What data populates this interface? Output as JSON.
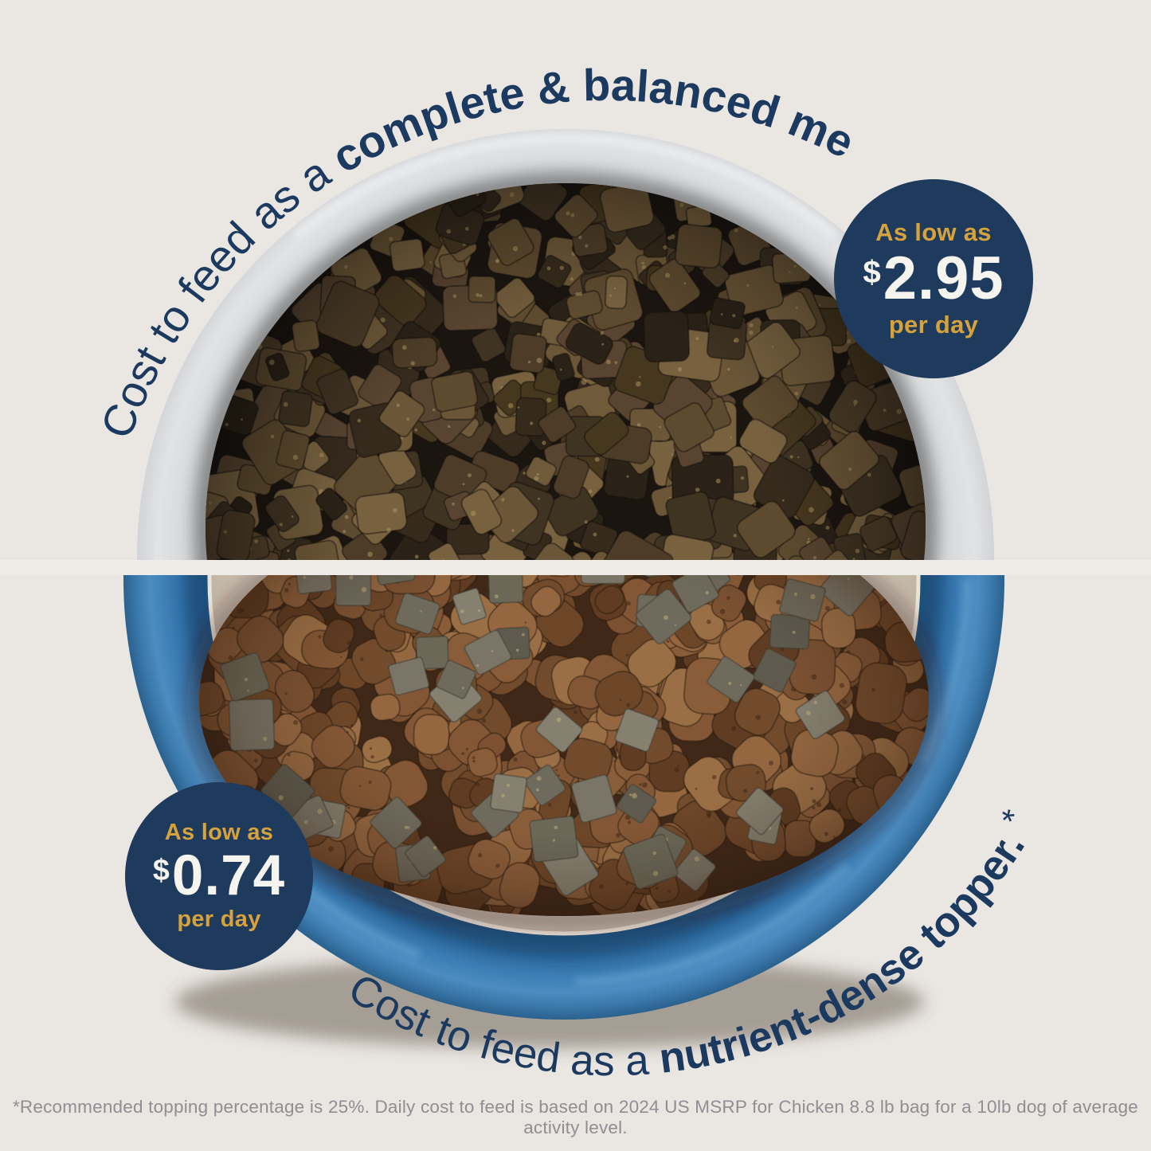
{
  "colors": {
    "background": "#eae6e2",
    "navy_badge": "#1e3a5c",
    "gold": "#d6a23d",
    "price_white": "#f6f4ef",
    "text_navy": "#1c3a60",
    "bowl_blue": "#2e6da6",
    "bowl_gray": "#c9ccd1",
    "bowl_cream": "#d6cdc3",
    "footnote_gray": "#8f8e93"
  },
  "top_section": {
    "curved_text": {
      "regular": "Cost to feed as a ",
      "bold": "complete & balanced meal."
    },
    "badge": {
      "prefix": "As low as",
      "currency": "$",
      "amount": "2.95",
      "suffix": "per day"
    }
  },
  "bottom_section": {
    "curved_text": {
      "regular": "Cost to feed as a ",
      "bold": "nutrient-dense topper.",
      "footnote_marker": " *"
    },
    "badge": {
      "prefix": "As low as",
      "currency": "$",
      "amount": "0.74",
      "suffix": "per day"
    }
  },
  "footnote": "*Recommended topping percentage is 25%. Daily cost to feed is based on 2024 US MSRP for Chicken 8.8 lb bag for a 10lb dog of average activity level."
}
